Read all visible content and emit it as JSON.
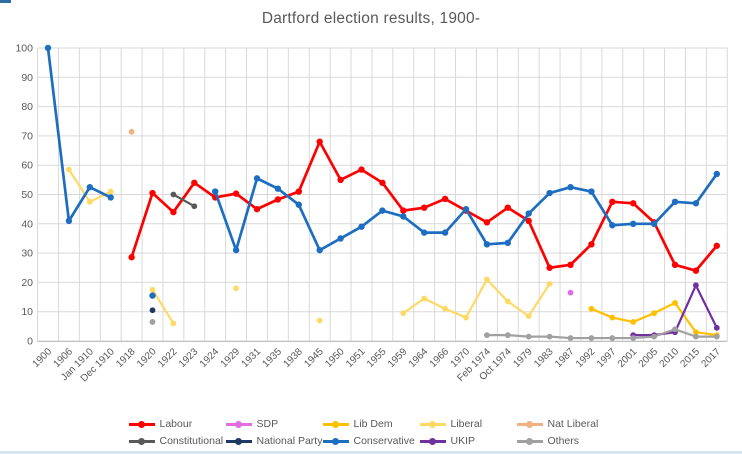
{
  "chart_data": {
    "type": "line",
    "title": "Dartford election results, 1900-",
    "xlabel": "",
    "ylabel": "",
    "ylim": [
      0,
      100
    ],
    "grid": true,
    "legend_position": "bottom",
    "y_ticks": [
      0,
      10,
      20,
      30,
      40,
      50,
      60,
      70,
      80,
      90,
      100
    ],
    "categories": [
      "1900",
      "1906",
      "Jan 1910",
      "Dec 1910",
      "1918",
      "1920",
      "1922",
      "1923",
      "1924",
      "1929",
      "1931",
      "1935",
      "1938",
      "1945",
      "1950",
      "1951",
      "1955",
      "1959",
      "1964",
      "1966",
      "1970",
      "Feb 1974",
      "Oct 1974",
      "1979",
      "1983",
      "1987",
      "1992",
      "1997",
      "2001",
      "2005",
      "2010",
      "2015",
      "2017"
    ],
    "series": [
      {
        "name": "Labour",
        "color": "#ff0000",
        "values": [
          null,
          null,
          null,
          null,
          28.6,
          50.5,
          44,
          54,
          49,
          50.3,
          45,
          48.3,
          51,
          68,
          55,
          58.5,
          54,
          44.5,
          45.5,
          48.5,
          44.5,
          40.5,
          45.5,
          41,
          25,
          26,
          33,
          47.5,
          47,
          40.5,
          26,
          24,
          32.5
        ]
      },
      {
        "name": "SDP",
        "color": "#e26ce2",
        "values": [
          null,
          null,
          null,
          null,
          null,
          null,
          null,
          null,
          null,
          null,
          null,
          null,
          null,
          null,
          null,
          null,
          null,
          null,
          null,
          null,
          null,
          null,
          null,
          null,
          null,
          16.5,
          null,
          null,
          null,
          null,
          null,
          null,
          null
        ]
      },
      {
        "name": "Lib Dem",
        "color": "#ffc000",
        "values": [
          null,
          null,
          null,
          null,
          null,
          null,
          null,
          null,
          null,
          null,
          null,
          null,
          null,
          null,
          null,
          null,
          null,
          null,
          null,
          null,
          null,
          null,
          null,
          null,
          null,
          null,
          11,
          8,
          6.5,
          9.5,
          13,
          3,
          2
        ]
      },
      {
        "name": "Liberal",
        "color": "#ffd966",
        "values": [
          null,
          58.5,
          47.5,
          51,
          null,
          17.5,
          6,
          null,
          null,
          18,
          null,
          null,
          null,
          7,
          null,
          null,
          null,
          9.5,
          14.5,
          11,
          8,
          21,
          13.5,
          8.5,
          19.5,
          null,
          null,
          null,
          null,
          null,
          null,
          null,
          null
        ]
      },
      {
        "name": "Nat Liberal",
        "color": "#f2b183",
        "values": [
          null,
          null,
          null,
          null,
          71.4,
          null,
          null,
          null,
          null,
          null,
          null,
          null,
          null,
          null,
          null,
          null,
          null,
          null,
          null,
          null,
          null,
          null,
          null,
          null,
          null,
          null,
          null,
          null,
          null,
          null,
          null,
          null,
          null
        ]
      },
      {
        "name": "Constitutional",
        "color": "#595959",
        "values": [
          null,
          null,
          null,
          null,
          null,
          null,
          50,
          46,
          null,
          null,
          null,
          null,
          null,
          null,
          null,
          null,
          null,
          null,
          null,
          null,
          null,
          null,
          null,
          null,
          null,
          null,
          null,
          null,
          null,
          null,
          null,
          null,
          null
        ]
      },
      {
        "name": "National Party",
        "color": "#1f3864",
        "values": [
          null,
          null,
          null,
          null,
          null,
          10.5,
          null,
          null,
          null,
          null,
          null,
          null,
          null,
          null,
          null,
          null,
          null,
          null,
          null,
          null,
          null,
          null,
          null,
          null,
          null,
          null,
          null,
          null,
          null,
          null,
          null,
          null,
          null
        ]
      },
      {
        "name": "Conservative",
        "color": "#1d6ec1",
        "values": [
          100,
          41,
          52.5,
          49,
          null,
          15.5,
          null,
          null,
          51,
          31,
          55.5,
          52,
          46.5,
          31,
          35,
          39,
          44.5,
          42.5,
          37,
          37,
          45,
          33,
          33.5,
          43.5,
          50.5,
          52.5,
          51,
          39.5,
          40,
          40,
          47.5,
          47,
          57
        ]
      },
      {
        "name": "UKIP",
        "color": "#7030a0",
        "values": [
          null,
          null,
          null,
          null,
          null,
          null,
          null,
          null,
          null,
          null,
          null,
          null,
          null,
          null,
          null,
          null,
          null,
          null,
          null,
          null,
          null,
          null,
          null,
          null,
          null,
          null,
          null,
          null,
          2,
          2,
          3,
          19,
          4.5
        ]
      },
      {
        "name": "Others",
        "color": "#a0a0a0",
        "values": [
          null,
          null,
          null,
          null,
          null,
          6.5,
          null,
          null,
          null,
          null,
          null,
          null,
          null,
          null,
          null,
          null,
          null,
          null,
          null,
          null,
          null,
          2,
          2,
          1.5,
          1.5,
          1,
          1,
          1,
          1,
          1.5,
          4,
          1.5,
          1.5
        ]
      }
    ]
  },
  "legend": {
    "rows": [
      [
        "Labour",
        "SDP",
        "Lib Dem",
        "Liberal",
        "Nat Liberal"
      ],
      [
        "Constitutional",
        "National Party",
        "Conservative",
        "UKIP",
        "Others"
      ]
    ]
  },
  "colors": {
    "gridline": "#d9d9d9",
    "axis_line": "#bfbfbf",
    "text": "#595959"
  }
}
